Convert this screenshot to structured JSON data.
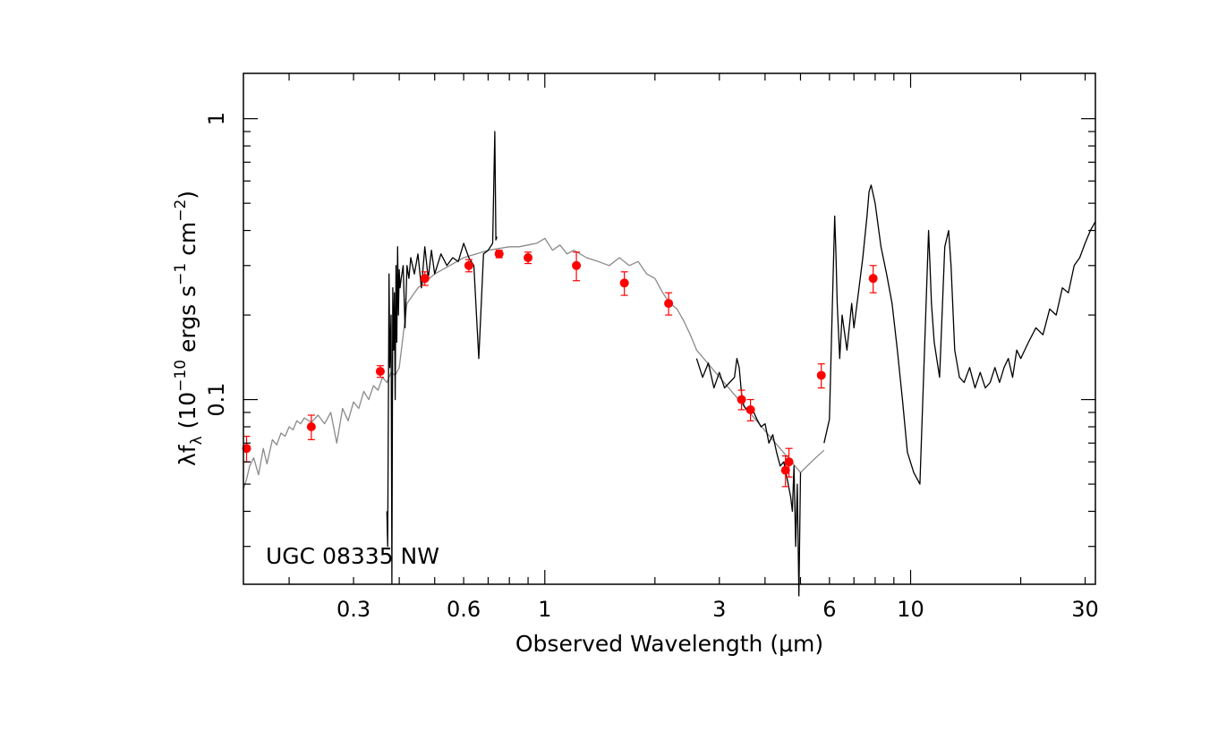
{
  "chart_data": {
    "type": "line",
    "annotation": "UGC 08335 NW",
    "xlabel": "Observed Wavelength (μm)",
    "ylabel": {
      "prefix": "λf",
      "sub": "λ",
      "part1": " (10",
      "exp1": "−10",
      "part2": " ergs s",
      "exp2": "−1",
      "part3": " cm",
      "exp3": "−2",
      "part4": ")"
    },
    "xscale": "log",
    "yscale": "log",
    "xlim": [
      0.15,
      32
    ],
    "ylim": [
      0.022,
      1.45
    ],
    "x_tick_labels": [
      {
        "value": 0.3,
        "label": "0.3"
      },
      {
        "value": 0.6,
        "label": "0.6"
      },
      {
        "value": 1,
        "label": "1"
      },
      {
        "value": 3,
        "label": "3"
      },
      {
        "value": 6,
        "label": "6"
      },
      {
        "value": 10,
        "label": "10"
      },
      {
        "value": 30,
        "label": "30"
      }
    ],
    "y_tick_labels": [
      {
        "value": 0.1,
        "label": "0.1"
      },
      {
        "value": 1,
        "label": "1"
      }
    ],
    "series": [
      {
        "style": "model",
        "color": "#8a8a8a",
        "x": [
          0.15,
          0.153,
          0.156,
          0.16,
          0.165,
          0.17,
          0.174,
          0.18,
          0.185,
          0.19,
          0.195,
          0.2,
          0.205,
          0.21,
          0.215,
          0.22,
          0.23,
          0.24,
          0.25,
          0.26,
          0.27,
          0.28,
          0.29,
          0.3,
          0.31,
          0.32,
          0.33,
          0.34,
          0.35,
          0.36,
          0.37,
          0.38,
          0.39,
          0.4,
          0.42,
          0.45,
          0.5,
          0.55,
          0.6,
          0.65,
          0.7,
          0.75,
          0.8,
          0.85,
          0.9,
          0.95,
          1.0,
          1.05,
          1.1,
          1.15,
          1.2,
          1.3,
          1.4,
          1.5,
          1.6,
          1.7,
          1.8,
          1.9,
          2.0,
          2.1,
          2.2,
          2.3,
          2.4,
          2.5,
          2.6,
          5.0,
          5.5,
          5.8
        ],
        "y": [
          0.048,
          0.052,
          0.058,
          0.062,
          0.054,
          0.067,
          0.059,
          0.072,
          0.069,
          0.076,
          0.074,
          0.08,
          0.078,
          0.084,
          0.082,
          0.086,
          0.083,
          0.088,
          0.082,
          0.09,
          0.07,
          0.093,
          0.084,
          0.098,
          0.093,
          0.107,
          0.1,
          0.112,
          0.108,
          0.12,
          0.115,
          0.125,
          0.122,
          0.13,
          0.22,
          0.25,
          0.28,
          0.3,
          0.32,
          0.33,
          0.34,
          0.345,
          0.35,
          0.35,
          0.355,
          0.36,
          0.375,
          0.34,
          0.355,
          0.33,
          0.34,
          0.32,
          0.31,
          0.3,
          0.32,
          0.3,
          0.31,
          0.28,
          0.27,
          0.24,
          0.22,
          0.21,
          0.19,
          0.17,
          0.15,
          0.055,
          0.062,
          0.066
        ]
      },
      {
        "style": "uv-optical-spectrum",
        "color": "#000000",
        "x": [
          0.37,
          0.372,
          0.375,
          0.377,
          0.38,
          0.382,
          0.384,
          0.386,
          0.388,
          0.39,
          0.392,
          0.394,
          0.396,
          0.398,
          0.4,
          0.402,
          0.405,
          0.41,
          0.415,
          0.42,
          0.425,
          0.43,
          0.44,
          0.45,
          0.46,
          0.47,
          0.48,
          0.49,
          0.5,
          0.52,
          0.54,
          0.56,
          0.58,
          0.6,
          0.62,
          0.64,
          0.66,
          0.68,
          0.7,
          0.72,
          0.73,
          0.735,
          0.74
        ],
        "y": [
          0.04,
          0.03,
          0.28,
          0.13,
          0.2,
          0.022,
          0.25,
          0.15,
          0.24,
          0.1,
          0.3,
          0.16,
          0.35,
          0.2,
          0.29,
          0.25,
          0.27,
          0.3,
          0.18,
          0.3,
          0.27,
          0.32,
          0.28,
          0.33,
          0.25,
          0.35,
          0.27,
          0.34,
          0.28,
          0.33,
          0.3,
          0.32,
          0.31,
          0.36,
          0.32,
          0.3,
          0.14,
          0.33,
          0.34,
          0.36,
          0.9,
          0.37,
          0.38
        ]
      },
      {
        "style": "ir-spectrum",
        "color": "#000000",
        "x": [
          2.6,
          2.7,
          2.8,
          2.9,
          3.0,
          3.1,
          3.2,
          3.3,
          3.35,
          3.4,
          3.45,
          3.5,
          3.6,
          3.7,
          3.8,
          3.9,
          4.0,
          4.1,
          4.2,
          4.3,
          4.4,
          4.5,
          4.6,
          4.7,
          4.75,
          4.8,
          4.85,
          4.9,
          4.95,
          5.0
        ],
        "y": [
          0.14,
          0.12,
          0.135,
          0.11,
          0.125,
          0.11,
          0.115,
          0.12,
          0.14,
          0.13,
          0.105,
          0.095,
          0.09,
          0.092,
          0.085,
          0.08,
          0.082,
          0.07,
          0.075,
          0.065,
          0.058,
          0.06,
          0.052,
          0.045,
          0.04,
          0.058,
          0.03,
          0.05,
          0.02,
          0.055
        ]
      },
      {
        "style": "mid-ir-spectrum",
        "color": "#000000",
        "x": [
          5.8,
          6.0,
          6.1,
          6.2,
          6.25,
          6.3,
          6.4,
          6.5,
          6.7,
          6.9,
          7.0,
          7.2,
          7.4,
          7.6,
          7.7,
          7.8,
          8.0,
          8.3,
          8.6,
          8.9,
          9.2,
          9.5,
          9.8,
          10.2,
          10.6,
          11.0,
          11.2,
          11.3,
          11.4,
          11.6,
          12.0,
          12.4,
          12.7,
          12.9,
          13.2,
          13.6,
          14.0,
          14.5,
          15.0,
          15.5,
          16.0,
          16.5,
          17.0,
          17.5,
          18.0,
          18.5,
          19.0,
          19.5,
          20.0,
          21.0,
          22.0,
          23.0,
          24.0,
          25.0,
          26.0,
          27.0,
          28.0,
          29.0,
          30.0,
          31.0,
          32.0
        ],
        "y": [
          0.07,
          0.085,
          0.2,
          0.45,
          0.33,
          0.22,
          0.14,
          0.2,
          0.15,
          0.22,
          0.18,
          0.24,
          0.32,
          0.45,
          0.55,
          0.58,
          0.5,
          0.35,
          0.28,
          0.22,
          0.15,
          0.1,
          0.065,
          0.055,
          0.05,
          0.2,
          0.4,
          0.3,
          0.22,
          0.16,
          0.12,
          0.35,
          0.4,
          0.3,
          0.15,
          0.12,
          0.115,
          0.13,
          0.11,
          0.125,
          0.11,
          0.115,
          0.13,
          0.115,
          0.13,
          0.14,
          0.12,
          0.15,
          0.14,
          0.16,
          0.18,
          0.17,
          0.21,
          0.2,
          0.25,
          0.24,
          0.3,
          0.32,
          0.36,
          0.4,
          0.43
        ]
      },
      {
        "style": "photometry",
        "color": "#ff0000",
        "x": [
          0.153,
          0.23,
          0.355,
          0.47,
          0.62,
          0.75,
          0.9,
          1.22,
          1.65,
          2.18,
          3.45,
          3.65,
          4.55,
          4.65,
          5.7,
          7.9
        ],
        "y": [
          0.067,
          0.08,
          0.126,
          0.27,
          0.3,
          0.33,
          0.32,
          0.3,
          0.26,
          0.22,
          0.1,
          0.092,
          0.056,
          0.06,
          0.122,
          0.27
        ],
        "yerr": [
          0.007,
          0.008,
          0.006,
          0.015,
          0.015,
          0.01,
          0.015,
          0.035,
          0.025,
          0.02,
          0.008,
          0.008,
          0.007,
          0.007,
          0.012,
          0.03
        ]
      }
    ]
  }
}
